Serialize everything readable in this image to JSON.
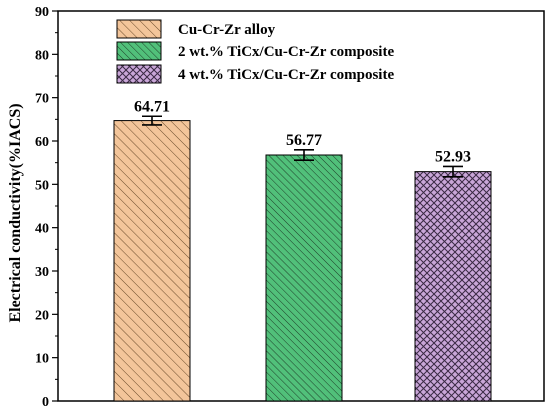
{
  "chart_data": {
    "type": "bar",
    "ylabel": "Electrical conductivity(%IACS)",
    "ylim": [
      0,
      90
    ],
    "yticks": [
      0,
      10,
      20,
      30,
      40,
      50,
      60,
      70,
      80,
      90
    ],
    "grid": false,
    "legend_position": "top-left inside",
    "series": [
      {
        "name": "Cu-Cr-Zr alloy",
        "value": 64.71,
        "error": 1.0,
        "label": "64.71",
        "color": "#f3c59a",
        "hatch": "diagonal-backslash"
      },
      {
        "name": "2 wt.% TiCx/Cu-Cr-Zr composite",
        "value": 56.77,
        "error": 1.2,
        "label": "56.77",
        "color": "#51c07a",
        "hatch": "diagonal-backslash-dense"
      },
      {
        "name": "4 wt.% TiCx/Cu-Cr-Zr composite",
        "value": 52.93,
        "error": 1.2,
        "label": "52.93",
        "color": "#c9a6d8",
        "hatch": "crosshatch"
      }
    ]
  }
}
